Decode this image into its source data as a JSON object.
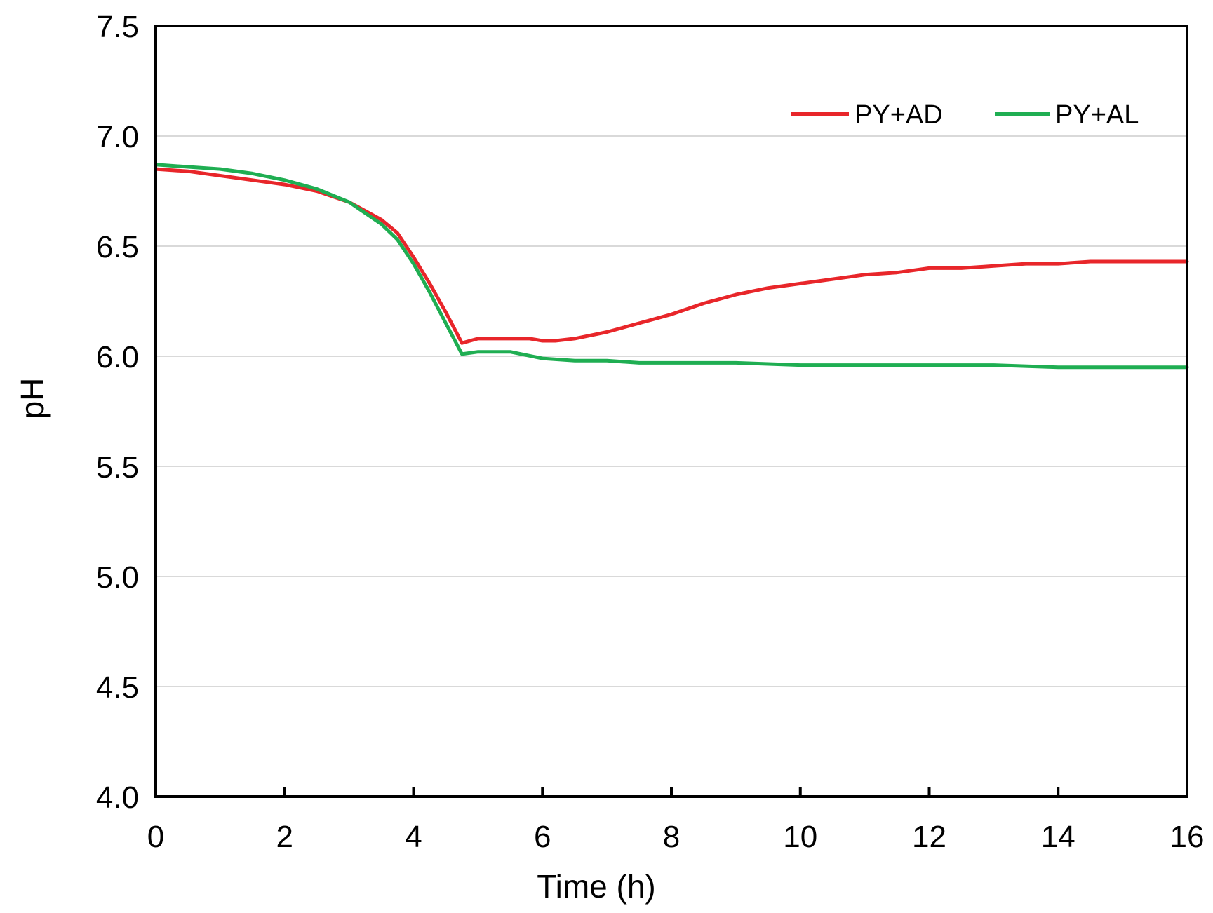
{
  "chart_data": {
    "type": "line",
    "title": "",
    "xlabel": "Time (h)",
    "ylabel": "pH",
    "xlim": [
      0,
      16
    ],
    "ylim": [
      4.0,
      7.5
    ],
    "xticks": [
      0,
      2,
      4,
      6,
      8,
      10,
      12,
      14,
      16
    ],
    "xtick_labels": [
      "0",
      "2",
      "4",
      "6",
      "8",
      "10",
      "12",
      "14",
      "16"
    ],
    "yticks": [
      4.0,
      4.5,
      5.0,
      5.5,
      6.0,
      6.5,
      7.0,
      7.5
    ],
    "ytick_labels": [
      "4.0",
      "4.5",
      "5.0",
      "5.5",
      "6.0",
      "6.5",
      "7.0",
      "7.5"
    ],
    "grid": "horizontal",
    "legend_position": "top-right",
    "series": [
      {
        "name": "PY+AD",
        "color": "#e8262a",
        "x": [
          0,
          0.5,
          1,
          1.5,
          2,
          2.5,
          3,
          3.5,
          3.75,
          4,
          4.25,
          4.5,
          4.75,
          5,
          5.5,
          5.8,
          6,
          6.2,
          6.5,
          7,
          7.5,
          8,
          8.5,
          9,
          9.5,
          10,
          10.5,
          11,
          11.5,
          12,
          12.5,
          13,
          13.5,
          14,
          14.5,
          15,
          15.5,
          16
        ],
        "y": [
          6.85,
          6.84,
          6.82,
          6.8,
          6.78,
          6.75,
          6.7,
          6.62,
          6.56,
          6.45,
          6.33,
          6.2,
          6.06,
          6.08,
          6.08,
          6.08,
          6.07,
          6.07,
          6.08,
          6.11,
          6.15,
          6.19,
          6.24,
          6.28,
          6.31,
          6.33,
          6.35,
          6.37,
          6.38,
          6.4,
          6.4,
          6.41,
          6.42,
          6.42,
          6.43,
          6.43,
          6.43,
          6.43
        ]
      },
      {
        "name": "PY+AL",
        "color": "#1fae52",
        "x": [
          0,
          0.5,
          1,
          1.5,
          2,
          2.5,
          3,
          3.5,
          3.75,
          4,
          4.25,
          4.5,
          4.75,
          5,
          5.5,
          6,
          6.5,
          7,
          7.5,
          8,
          9,
          10,
          11,
          12,
          13,
          14,
          15,
          16
        ],
        "y": [
          6.87,
          6.86,
          6.85,
          6.83,
          6.8,
          6.76,
          6.7,
          6.6,
          6.53,
          6.42,
          6.29,
          6.15,
          6.01,
          6.02,
          6.02,
          5.99,
          5.98,
          5.98,
          5.97,
          5.97,
          5.97,
          5.96,
          5.96,
          5.96,
          5.96,
          5.95,
          5.95,
          5.95
        ]
      }
    ]
  }
}
